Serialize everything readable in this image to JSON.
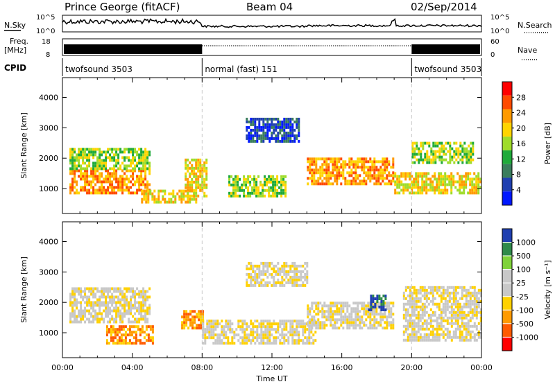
{
  "header": {
    "station": "Prince George (fitACF)",
    "beam": "Beam 04",
    "date": "02/Sep/2014"
  },
  "top_panels": {
    "nsky_label": "N.Sky",
    "nsearch_label": "N.Search",
    "nsky_ticks": [
      "10^5",
      "10^0"
    ],
    "nsearch_ticks": [
      "10^5",
      "10^0"
    ],
    "freq_label_1": "Freq.",
    "freq_label_2": "[MHz]",
    "freq_ticks": [
      "18",
      "8"
    ],
    "nave_label": "Nave",
    "nave_ticks": [
      "60",
      "0"
    ],
    "cpid_label": "CPID"
  },
  "cpid_segments": [
    {
      "label": "twofsound 3503",
      "start_hour": 0,
      "end_hour": 8
    },
    {
      "label": "normal (fast) 151",
      "start_hour": 8,
      "end_hour": 20
    },
    {
      "label": "twofsound 3503",
      "start_hour": 20,
      "end_hour": 24
    }
  ],
  "colors": {
    "power_scale": [
      "#0018ff",
      "#1f3fb0",
      "#3a7d5c",
      "#1faa3a",
      "#9fdc2a",
      "#ffd400",
      "#ff9a00",
      "#ff4a00",
      "#ff0000"
    ],
    "velocity_scale": [
      "#ff0000",
      "#ff5a00",
      "#ff9a00",
      "#ffd100",
      "#c8c8c8",
      "#c8c8c8",
      "#7fd23a",
      "#2e8a4a",
      "#1f3fb0"
    ]
  },
  "chart_data": [
    {
      "type": "heatmap",
      "panel": "power",
      "ylabel": "Slant Range [km]",
      "xlabel": "Time UT",
      "ylim": [
        180,
        4650
      ],
      "xlim": [
        0,
        24
      ],
      "yticks": [
        "1000",
        "2000",
        "3000",
        "4000"
      ],
      "xticks": [
        "00:00",
        "04:00",
        "08:00",
        "12:00",
        "16:00",
        "20:00",
        "00:00"
      ],
      "colorbar": {
        "title": "Power [dB]",
        "ticks": [
          "28",
          "24",
          "20",
          "16",
          "12",
          "8",
          "4"
        ]
      },
      "bands": [
        {
          "t0": 0.4,
          "t1": 5.0,
          "r0": 900,
          "r1": 1700,
          "level": 6
        },
        {
          "t0": 0.4,
          "t1": 5.0,
          "r0": 1700,
          "r1": 2400,
          "level": 4
        },
        {
          "t0": 4.5,
          "t1": 7.6,
          "r0": 600,
          "r1": 1000,
          "level": 5
        },
        {
          "t0": 7.0,
          "t1": 8.2,
          "r0": 800,
          "r1": 2000,
          "level": 5
        },
        {
          "t0": 9.5,
          "t1": 12.8,
          "r0": 800,
          "r1": 1500,
          "level": 4
        },
        {
          "t0": 10.5,
          "t1": 13.5,
          "r0": 2600,
          "r1": 3400,
          "level": 1
        },
        {
          "t0": 14.0,
          "t1": 19.0,
          "r0": 1200,
          "r1": 2100,
          "level": 6
        },
        {
          "t0": 19.0,
          "t1": 24.0,
          "r0": 900,
          "r1": 1600,
          "level": 5
        },
        {
          "t0": 20.0,
          "t1": 23.5,
          "r0": 1900,
          "r1": 2600,
          "level": 4
        }
      ]
    },
    {
      "type": "heatmap",
      "panel": "velocity",
      "ylabel": "Slant Range [km]",
      "xlabel": "Time UT",
      "ylim": [
        180,
        4650
      ],
      "xlim": [
        0,
        24
      ],
      "yticks": [
        "1000",
        "2000",
        "3000",
        "4000"
      ],
      "xticks": [
        "00:00",
        "04:00",
        "08:00",
        "12:00",
        "16:00",
        "20:00",
        "00:00"
      ],
      "colorbar": {
        "title": "Velocity [m s⁻¹]",
        "ticks": [
          "1000",
          "500",
          "100",
          "25",
          "-25",
          "-100",
          "-500",
          "-1000"
        ]
      },
      "bands": [
        {
          "t0": 0.4,
          "t1": 5.0,
          "r0": 1400,
          "r1": 2500,
          "level": 4
        },
        {
          "t0": 2.5,
          "t1": 5.2,
          "r0": 700,
          "r1": 1300,
          "level": 2
        },
        {
          "t0": 6.8,
          "t1": 8.0,
          "r0": 1200,
          "r1": 1800,
          "level": 2
        },
        {
          "t0": 8.0,
          "t1": 14.5,
          "r0": 700,
          "r1": 1500,
          "level": 4
        },
        {
          "t0": 10.5,
          "t1": 14.0,
          "r0": 2600,
          "r1": 3400,
          "level": 4
        },
        {
          "t0": 14.0,
          "t1": 19.0,
          "r0": 1200,
          "r1": 2100,
          "level": 4
        },
        {
          "t0": 17.5,
          "t1": 18.5,
          "r0": 1800,
          "r1": 2300,
          "level": 8
        },
        {
          "t0": 19.5,
          "t1": 24.0,
          "r0": 800,
          "r1": 2600,
          "level": 4
        }
      ]
    }
  ]
}
